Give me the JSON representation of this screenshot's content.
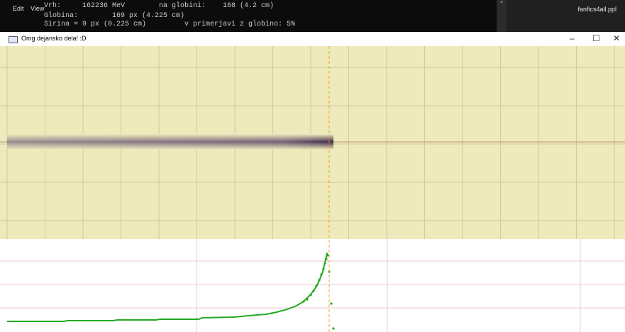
{
  "menu": [
    "Edit",
    "View"
  ],
  "console": {
    "lines": [
      "Vrh:     162236 MeV        na globini:    168 (4.2 cm)",
      "Globina:        169 px (4.225 cm)",
      "Sirina = 9 px (0.225 cm)         v primerjavi z globino: 5%"
    ]
  },
  "taskbar": {
    "file": "fanfics4all.ppl"
  },
  "window": {
    "title": "Omg dejansko dela! :D"
  }
}
